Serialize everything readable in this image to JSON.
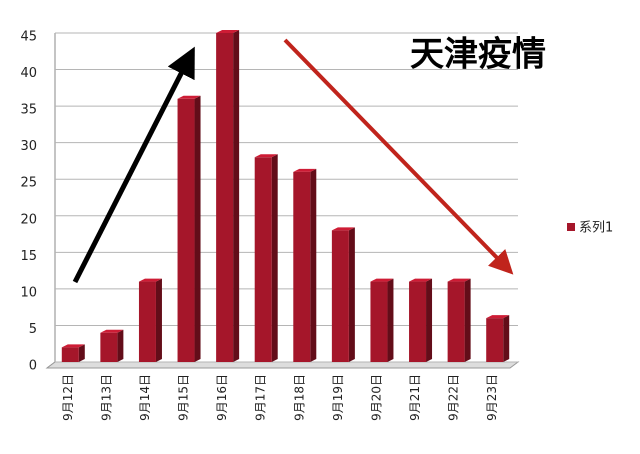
{
  "chart_data": {
    "type": "bar",
    "title": "天津疫情",
    "categories": [
      "9月12日",
      "9月13日",
      "9月14日",
      "9月15日",
      "9月16日",
      "9月17日",
      "9月18日",
      "9月19日",
      "9月20日",
      "9月21日",
      "9月22日",
      "9月23日"
    ],
    "series": [
      {
        "name": "系列1",
        "color": "#a5162a",
        "values": [
          2,
          4,
          11,
          36,
          45,
          28,
          26,
          18,
          11,
          11,
          11,
          6
        ]
      }
    ],
    "ylim": [
      0,
      45
    ],
    "yticks": [
      0,
      5,
      10,
      15,
      20,
      25,
      30,
      35,
      40,
      45
    ],
    "grid": true,
    "legend": "right"
  }
}
